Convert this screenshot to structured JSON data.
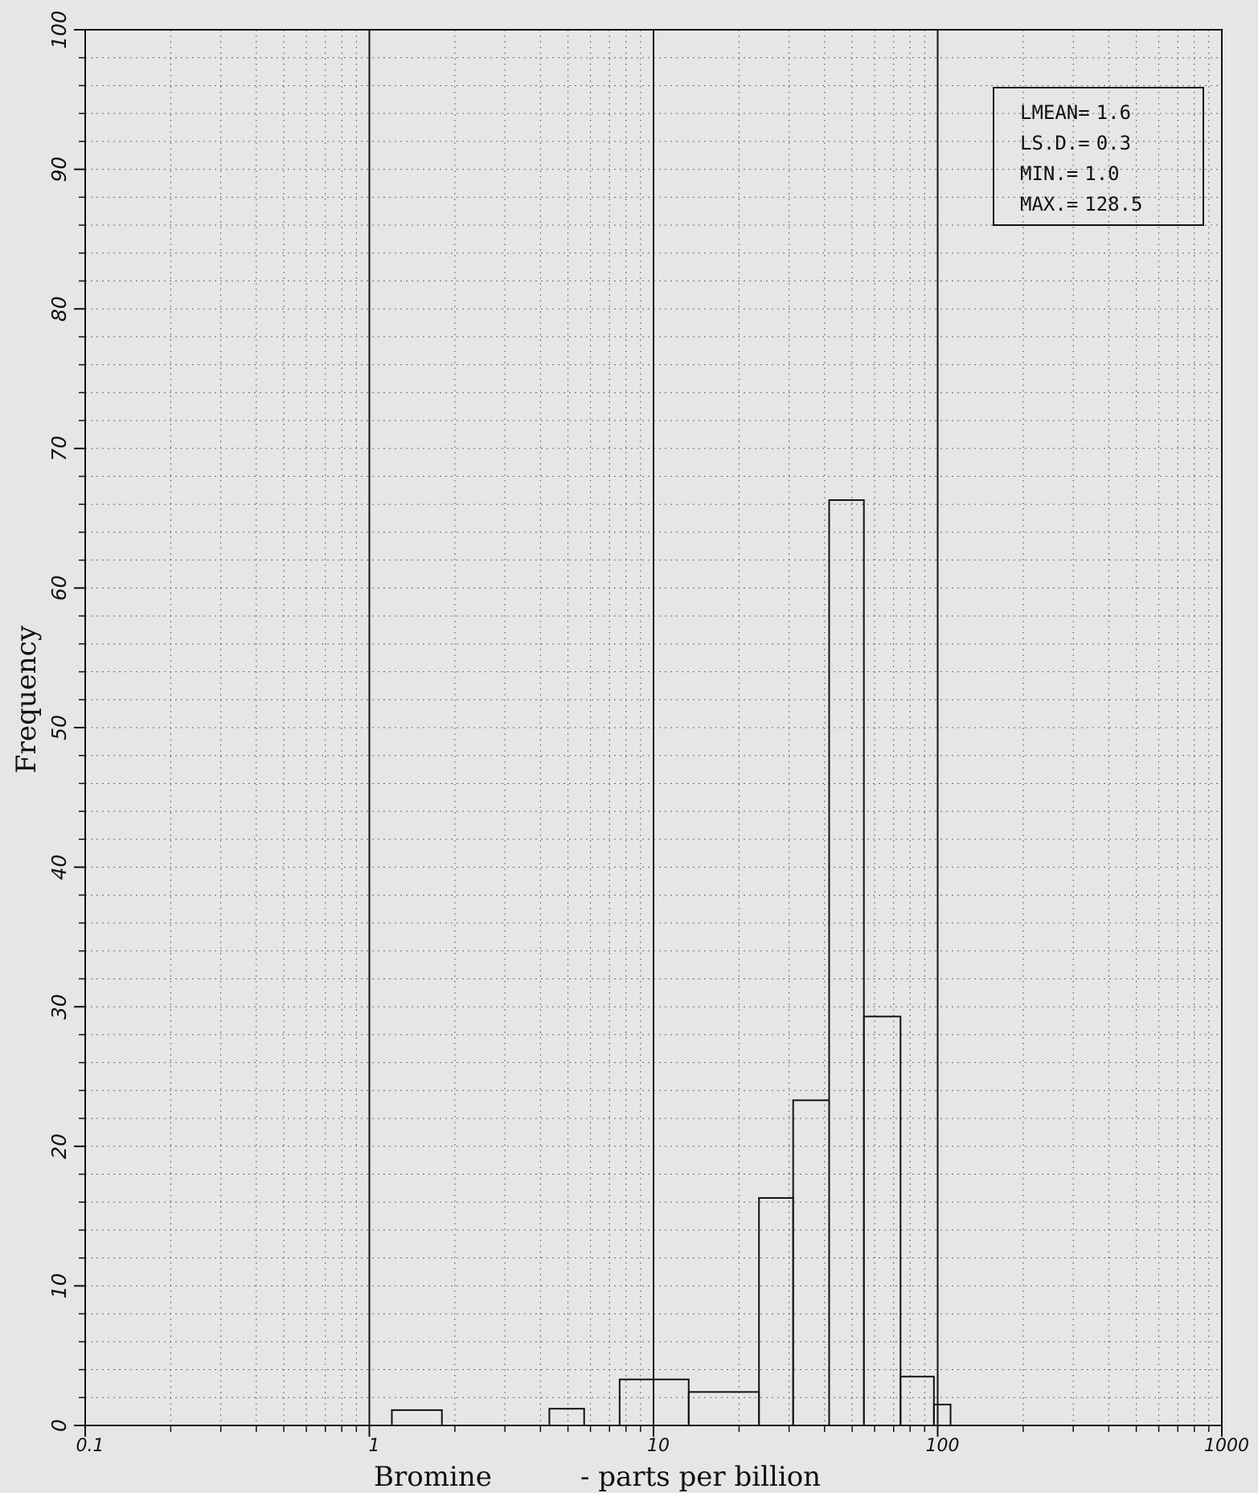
{
  "chart_data": {
    "type": "histogram",
    "title": "",
    "xlabel_element": "Bromine",
    "xlabel_unit": "- parts per billion",
    "ylabel": "Frequency",
    "x_scale": "log",
    "xlim": [
      0.1,
      1000
    ],
    "ylim": [
      0,
      100
    ],
    "grid": true,
    "x_tick_labels": [
      {
        "value": 0.1,
        "label": "0.1"
      },
      {
        "value": 1,
        "label": "1"
      },
      {
        "value": 10,
        "label": "10"
      },
      {
        "value": 100,
        "label": "100"
      },
      {
        "value": 1000,
        "label": "1000"
      }
    ],
    "y_tick_labels": [
      {
        "value": 0,
        "label": "0"
      },
      {
        "value": 10,
        "label": "10"
      },
      {
        "value": 20,
        "label": "20"
      },
      {
        "value": 30,
        "label": "30"
      },
      {
        "value": 40,
        "label": "40"
      },
      {
        "value": 50,
        "label": "50"
      },
      {
        "value": 60,
        "label": "60"
      },
      {
        "value": 70,
        "label": "70"
      },
      {
        "value": 80,
        "label": "80"
      },
      {
        "value": 90,
        "label": "90"
      },
      {
        "value": 100,
        "label": "100"
      }
    ],
    "bins": [
      {
        "x0": 1.2,
        "x1": 1.8,
        "count": 1.1
      },
      {
        "x0": 4.3,
        "x1": 5.7,
        "count": 1.2
      },
      {
        "x0": 7.6,
        "x1": 13.3,
        "count": 3.3
      },
      {
        "x0": 13.3,
        "x1": 23.5,
        "count": 2.4
      },
      {
        "x0": 23.5,
        "x1": 31.0,
        "count": 16.3
      },
      {
        "x0": 31.0,
        "x1": 41.5,
        "count": 23.3
      },
      {
        "x0": 41.5,
        "x1": 55.0,
        "count": 66.3
      },
      {
        "x0": 55.0,
        "x1": 74.0,
        "count": 29.3
      },
      {
        "x0": 74.0,
        "x1": 97.0,
        "count": 3.5
      },
      {
        "x0": 97.0,
        "x1": 111.0,
        "count": 1.5
      }
    ],
    "legend_position": "top-right",
    "stats": [
      {
        "label": "LMEAN=",
        "value": "1.6"
      },
      {
        "label": "LS.D.=",
        "value": "0.3"
      },
      {
        "label": "MIN.=",
        "value": "1.0"
      },
      {
        "label": "MAX.=",
        "value": "128.5"
      }
    ]
  }
}
